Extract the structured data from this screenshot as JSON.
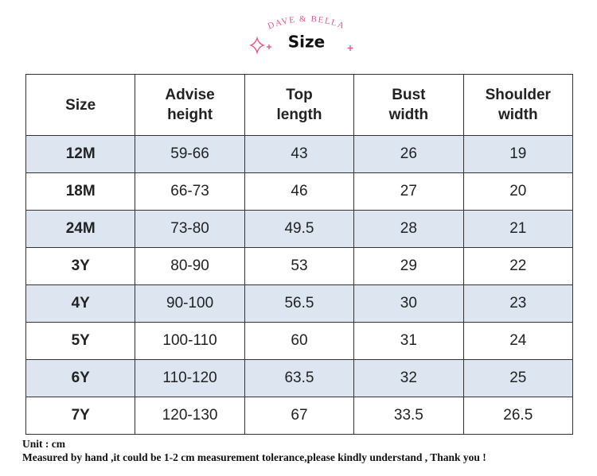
{
  "header": {
    "brand": "DAVE & BELLA",
    "title": "Size"
  },
  "table": {
    "columns": [
      [
        "Size"
      ],
      [
        "Advise",
        "height"
      ],
      [
        "Top",
        "length"
      ],
      [
        "Bust",
        "width"
      ],
      [
        "Shoulder",
        "width"
      ]
    ],
    "rows": [
      [
        "12M",
        "59-66",
        "43",
        "26",
        "19"
      ],
      [
        "18M",
        "66-73",
        "46",
        "27",
        "20"
      ],
      [
        "24M",
        "73-80",
        "49.5",
        "28",
        "21"
      ],
      [
        "3Y",
        "80-90",
        "53",
        "29",
        "22"
      ],
      [
        "4Y",
        "90-100",
        "56.5",
        "30",
        "23"
      ],
      [
        "5Y",
        "100-110",
        "60",
        "31",
        "24"
      ],
      [
        "6Y",
        "110-120",
        "63.5",
        "32",
        "25"
      ],
      [
        "7Y",
        "120-130",
        "67",
        "33.5",
        "26.5"
      ]
    ]
  },
  "footer": {
    "unit": "Unit : cm",
    "note": "Measured by hand ,it could be 1-2 cm measurement tolerance,please kindly understand , Thank you !"
  }
}
